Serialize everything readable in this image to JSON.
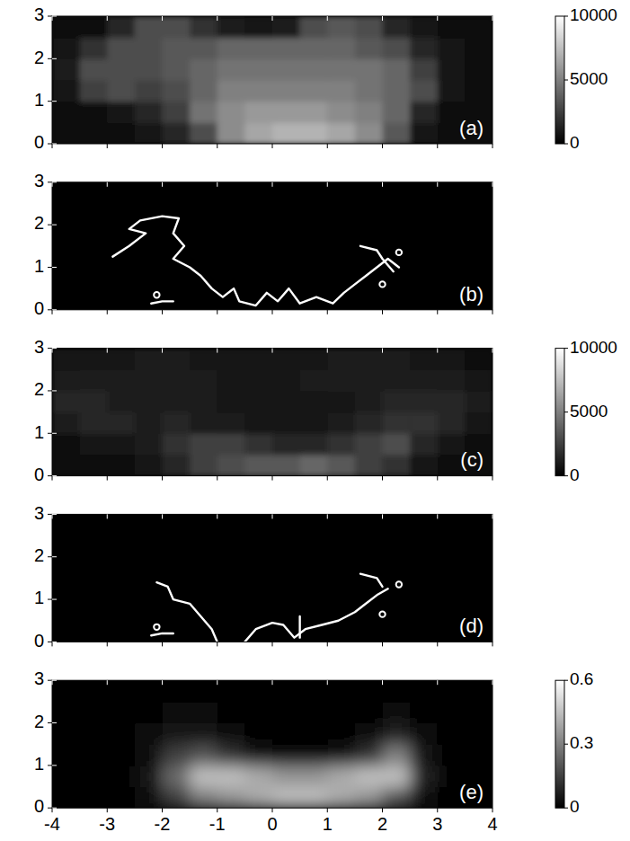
{
  "chart_data": [
    {
      "type": "heatmap",
      "title": "(a)",
      "xlim": [
        -4,
        4
      ],
      "ylim": [
        0,
        3
      ],
      "xticks": [
        -4,
        -3,
        -2,
        -1,
        0,
        1,
        2,
        3,
        4
      ],
      "yticks": [
        0,
        1,
        2,
        3
      ],
      "tick_labels": "y",
      "xbins": [
        -4,
        -3.5,
        -3,
        -2.5,
        -2,
        -1.5,
        -1,
        -0.5,
        0,
        0.5,
        1,
        1.5,
        2,
        2.5,
        3,
        3.5,
        4
      ],
      "ybins": [
        0,
        0.5,
        1,
        1.5,
        2,
        2.5,
        3
      ],
      "z": [
        [
          500,
          500,
          600,
          700,
          1500,
          3000,
          5500,
          6500,
          7000,
          7000,
          6500,
          5500,
          3500,
          800,
          500,
          500
        ],
        [
          500,
          600,
          800,
          1500,
          2500,
          4500,
          5500,
          6000,
          6000,
          6000,
          5500,
          5000,
          4000,
          1500,
          600,
          500
        ],
        [
          700,
          2500,
          3000,
          2500,
          3000,
          4000,
          5000,
          5000,
          5000,
          5000,
          5000,
          4500,
          4000,
          3000,
          800,
          500
        ],
        [
          1000,
          3000,
          3000,
          3000,
          3500,
          4000,
          4500,
          4500,
          4500,
          4500,
          4500,
          4500,
          4000,
          2500,
          800,
          500
        ],
        [
          800,
          2000,
          3000,
          3000,
          3500,
          3500,
          4000,
          4000,
          4000,
          4000,
          4000,
          3500,
          3000,
          1500,
          700,
          500
        ],
        [
          500,
          600,
          1500,
          3000,
          3000,
          2000,
          1000,
          900,
          1200,
          3000,
          3500,
          3000,
          1500,
          800,
          600,
          500
        ]
      ],
      "zlim": [
        0,
        10000
      ],
      "zticks": [
        0,
        5000,
        10000
      ]
    },
    {
      "type": "line",
      "title": "(b)",
      "xlim": [
        -4,
        4
      ],
      "ylim": [
        0,
        3
      ],
      "xticks": [
        -4,
        -3,
        -2,
        -1,
        0,
        1,
        2,
        3,
        4
      ],
      "yticks": [
        0,
        1,
        2,
        3
      ],
      "tick_labels": "y",
      "series": [
        {
          "color": "#ffffff",
          "x": [
            -2.9,
            -2.6,
            -2.3,
            -2.6,
            -2.4,
            -2.0,
            -1.7,
            -1.8,
            -1.6,
            -1.8,
            -1.5,
            -1.3,
            -1.1,
            -0.9,
            -0.7,
            -0.6,
            -0.3,
            -0.1,
            0.1,
            0.3,
            0.5,
            0.8,
            1.1,
            1.3,
            1.5,
            1.7,
            1.9,
            2.1,
            2.3
          ],
          "values": [
            1.25,
            1.5,
            1.8,
            1.9,
            2.1,
            2.2,
            2.15,
            1.8,
            1.5,
            1.2,
            1.0,
            0.8,
            0.5,
            0.3,
            0.5,
            0.2,
            0.1,
            0.4,
            0.2,
            0.5,
            0.15,
            0.3,
            0.15,
            0.4,
            0.6,
            0.8,
            1.0,
            1.2,
            1.0
          ]
        },
        {
          "color": "#ffffff",
          "x": [
            1.6,
            1.9,
            2.0,
            2.2
          ],
          "values": [
            1.5,
            1.4,
            1.2,
            0.9
          ]
        },
        {
          "color": "#ffffff",
          "x": [
            -2.2,
            -2.0,
            -1.8
          ],
          "values": [
            0.15,
            0.2,
            0.2
          ]
        },
        {
          "type": "scatter",
          "marker": "circle",
          "color": "#ffffff",
          "x": [
            -2.1,
            2.3,
            2.0
          ],
          "values": [
            0.35,
            1.35,
            0.6
          ]
        }
      ]
    },
    {
      "type": "heatmap",
      "title": "(c)",
      "xlim": [
        -4,
        4
      ],
      "ylim": [
        0,
        3
      ],
      "xticks": [
        -4,
        -3,
        -2,
        -1,
        0,
        1,
        2,
        3,
        4
      ],
      "yticks": [
        0,
        1,
        2,
        3
      ],
      "tick_labels": "y",
      "xbins": [
        -4,
        -3.5,
        -3,
        -2.5,
        -2,
        -1.5,
        -1,
        -0.5,
        0,
        0.5,
        1,
        1.5,
        2,
        2.5,
        3,
        3.5,
        4
      ],
      "ybins": [
        0,
        0.5,
        1,
        1.5,
        2,
        2.5,
        3
      ],
      "z": [
        [
          500,
          500,
          600,
          700,
          1500,
          2500,
          3000,
          3500,
          3500,
          4000,
          3500,
          2500,
          2000,
          800,
          500,
          500
        ],
        [
          500,
          800,
          800,
          1200,
          2000,
          2500,
          2500,
          2000,
          1500,
          1500,
          2000,
          2500,
          3000,
          1500,
          800,
          500
        ],
        [
          1200,
          1500,
          1500,
          1200,
          1500,
          1200,
          1000,
          900,
          900,
          900,
          1000,
          1500,
          2000,
          2000,
          1500,
          800
        ],
        [
          1500,
          1500,
          1200,
          1000,
          1200,
          1000,
          900,
          800,
          800,
          800,
          900,
          1200,
          1500,
          1500,
          1500,
          1200
        ],
        [
          1000,
          1200,
          1000,
          1000,
          1200,
          1000,
          900,
          900,
          900,
          1000,
          1200,
          1200,
          1200,
          1200,
          1000,
          800
        ],
        [
          700,
          800,
          800,
          1000,
          1000,
          900,
          800,
          800,
          800,
          900,
          1000,
          1000,
          1000,
          900,
          800,
          600
        ]
      ],
      "zlim": [
        0,
        10000
      ],
      "zticks": [
        0,
        5000,
        10000
      ]
    },
    {
      "type": "line",
      "title": "(d)",
      "xlim": [
        -4,
        4
      ],
      "ylim": [
        0,
        3
      ],
      "xticks": [
        -4,
        -3,
        -2,
        -1,
        0,
        1,
        2,
        3,
        4
      ],
      "yticks": [
        0,
        1,
        2,
        3
      ],
      "tick_labels": "y",
      "series": [
        {
          "color": "#ffffff",
          "x": [
            -2.1,
            -1.9,
            -1.8,
            -1.5,
            -1.3,
            -1.1,
            -1.0
          ],
          "values": [
            1.4,
            1.3,
            1.0,
            0.9,
            0.6,
            0.3,
            0.0
          ]
        },
        {
          "color": "#ffffff",
          "x": [
            -0.5,
            -0.3,
            0.0,
            0.2,
            0.4,
            0.6,
            0.9,
            1.2,
            1.5,
            1.7,
            1.9,
            2.1
          ],
          "values": [
            0.0,
            0.3,
            0.45,
            0.4,
            0.1,
            0.3,
            0.4,
            0.5,
            0.7,
            0.9,
            1.1,
            1.25
          ]
        },
        {
          "color": "#ffffff",
          "x": [
            1.6,
            1.9,
            2.0
          ],
          "values": [
            1.6,
            1.5,
            1.3
          ]
        },
        {
          "color": "#ffffff",
          "x": [
            0.5,
            0.5
          ],
          "values": [
            0.6,
            0.1
          ]
        },
        {
          "color": "#ffffff",
          "x": [
            -2.2,
            -2.0,
            -1.8
          ],
          "values": [
            0.15,
            0.2,
            0.2
          ]
        },
        {
          "type": "scatter",
          "marker": "circle",
          "color": "#ffffff",
          "x": [
            -2.1,
            2.3,
            2.0
          ],
          "values": [
            0.35,
            1.35,
            0.65
          ]
        }
      ]
    },
    {
      "type": "heatmap",
      "title": "(e)",
      "xlim": [
        -4,
        4
      ],
      "ylim": [
        0,
        3
      ],
      "xticks": [
        -4,
        -3,
        -2,
        -1,
        0,
        1,
        2,
        3,
        4
      ],
      "yticks": [
        0,
        1,
        2,
        3
      ],
      "xbins": [
        -4,
        -3.5,
        -3,
        -2.5,
        -2,
        -1.5,
        -1,
        -0.5,
        0,
        0.5,
        1,
        1.5,
        2,
        2.5,
        3,
        3.5,
        4
      ],
      "ybins": [
        0,
        0.5,
        1,
        1.5,
        2,
        2.5,
        3
      ],
      "z": [
        [
          0,
          0,
          0,
          0.02,
          0.15,
          0.3,
          0.35,
          0.4,
          0.45,
          0.45,
          0.4,
          0.35,
          0.2,
          0.03,
          0,
          0
        ],
        [
          0,
          0,
          0,
          0.05,
          0.25,
          0.45,
          0.45,
          0.4,
          0.35,
          0.35,
          0.4,
          0.45,
          0.45,
          0.08,
          0,
          0
        ],
        [
          0,
          0,
          0,
          0.03,
          0.15,
          0.2,
          0.12,
          0.05,
          0.03,
          0.03,
          0.05,
          0.12,
          0.3,
          0.05,
          0,
          0
        ],
        [
          0,
          0,
          0,
          0.02,
          0.05,
          0.05,
          0.02,
          0.01,
          0,
          0,
          0.01,
          0.03,
          0.08,
          0.02,
          0,
          0
        ],
        [
          0,
          0,
          0,
          0.01,
          0.02,
          0.02,
          0.01,
          0,
          0,
          0,
          0,
          0.01,
          0.02,
          0.01,
          0,
          0
        ],
        [
          0,
          0,
          0,
          0,
          0.01,
          0.01,
          0,
          0,
          0,
          0,
          0,
          0,
          0.01,
          0,
          0,
          0
        ]
      ],
      "zlim": [
        0,
        0.6
      ],
      "zticks": [
        0,
        0.3,
        0.6
      ]
    }
  ]
}
